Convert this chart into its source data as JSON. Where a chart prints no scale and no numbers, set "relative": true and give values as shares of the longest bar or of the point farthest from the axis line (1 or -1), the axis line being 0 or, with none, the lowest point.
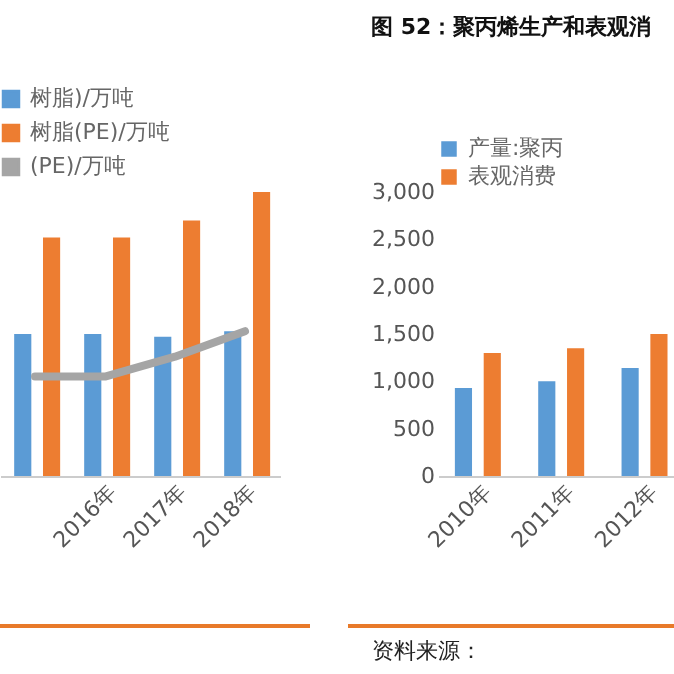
{
  "chart_data": [
    {
      "type": "bar",
      "relative": true,
      "categories": [
        null,
        "2016年",
        "2017年",
        "2018年"
      ],
      "legend": "top left",
      "series": [
        {
          "name": "树脂)/万吨",
          "color": "#5b9bd5",
          "values": [
            0.5,
            0.5,
            0.49,
            0.51
          ]
        },
        {
          "name": "树脂(PE)/万吨",
          "color": "#ed7d31",
          "values": [
            0.84,
            0.84,
            0.9,
            1
          ]
        },
        {
          "name": "(PE)/万吨",
          "type": "line",
          "color": "#a5a5a5",
          "values": [
            0.35,
            0.35,
            0.42,
            0.51
          ]
        }
      ]
    },
    {
      "type": "bar",
      "title": "图 52：聚丙烯生产和表观消",
      "categories": [
        "2010年",
        "2011年",
        "2012年"
      ],
      "ylim": [
        0,
        3000
      ],
      "yticks": [
        0,
        500,
        {
          "value": 1000,
          "label": "1,000"
        },
        {
          "value": 1500,
          "label": "1,500"
        },
        {
          "value": 2000,
          "label": "2,000"
        },
        {
          "value": 2500,
          "label": "2,500"
        },
        {
          "value": 3000,
          "label": "3,000"
        }
      ],
      "legend": "top",
      "annotations": [
        "资料来源："
      ],
      "series": [
        {
          "name": "产量:聚丙",
          "color": "#5b9bd5",
          "values": [
            930,
            1000,
            1140
          ]
        },
        {
          "name": "表观消费",
          "color": "#ed7d31",
          "values": [
            1300,
            1350,
            1500
          ]
        }
      ]
    }
  ]
}
